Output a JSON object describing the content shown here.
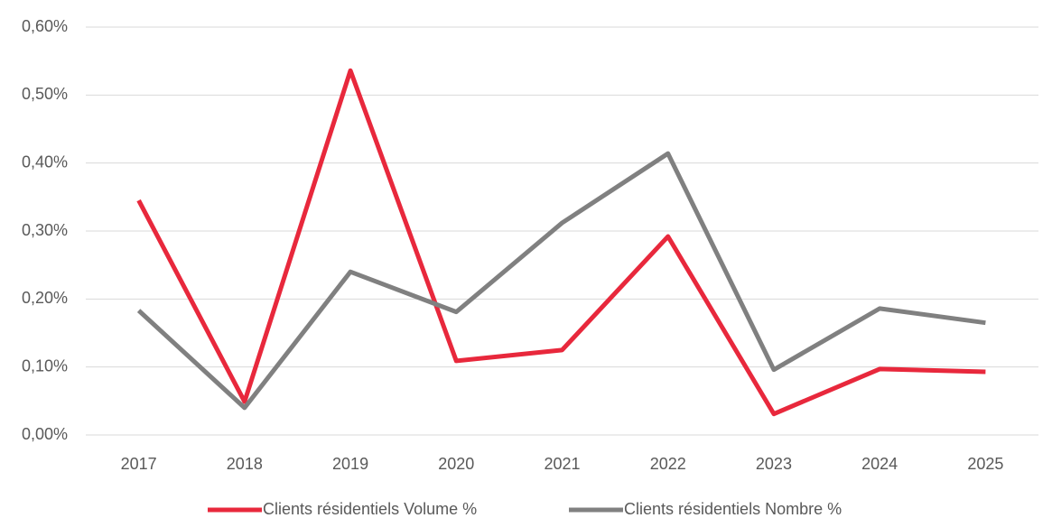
{
  "chart_data": {
    "type": "line",
    "categories": [
      "2017",
      "2018",
      "2019",
      "2020",
      "2021",
      "2022",
      "2023",
      "2024",
      "2025"
    ],
    "series": [
      {
        "name": "Clients résidentiels Volume %",
        "color": "#e8283c",
        "values": [
          0.345,
          0.049,
          0.536,
          0.109,
          0.125,
          0.292,
          0.031,
          0.097,
          0.093
        ]
      },
      {
        "name": "Clients résidentiels Nombre %",
        "color": "#808080",
        "values": [
          0.183,
          0.04,
          0.24,
          0.181,
          0.312,
          0.414,
          0.096,
          0.186,
          0.165
        ]
      }
    ],
    "ylim": [
      0,
      0.6
    ],
    "yticks": [
      {
        "value": 0,
        "label": "0,00%"
      },
      {
        "value": 0.1,
        "label": "0,10%"
      },
      {
        "value": 0.2,
        "label": "0,20%"
      },
      {
        "value": 0.3,
        "label": "0,30%"
      },
      {
        "value": 0.4,
        "label": "0,40%"
      },
      {
        "value": 0.5,
        "label": "0,50%"
      },
      {
        "value": 0.6,
        "label": "0,60%"
      }
    ],
    "grid": true,
    "legend": "bottom"
  }
}
